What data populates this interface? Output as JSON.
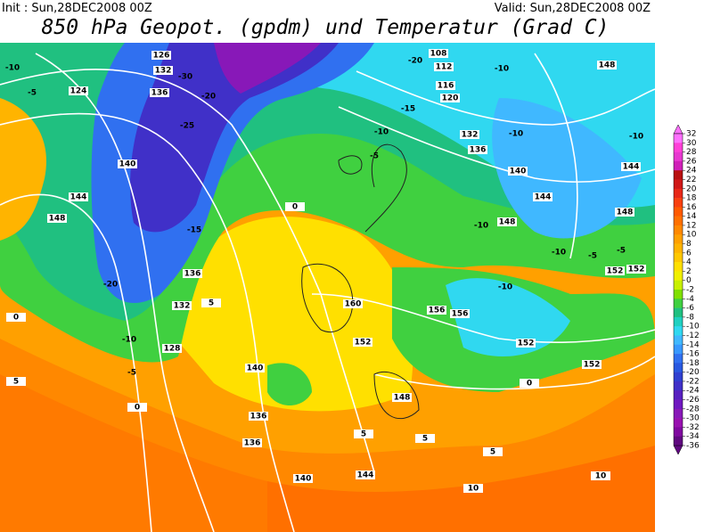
{
  "header": {
    "init": "Init : Sun,28DEC2008 00Z",
    "valid": "Valid: Sun,28DEC2008 00Z",
    "title": "850 hPa Geopot. (gpdm) und Temperatur (Grad C)"
  },
  "colorbar": {
    "levels": [
      32,
      30,
      28,
      26,
      24,
      22,
      20,
      18,
      16,
      14,
      12,
      10,
      8,
      6,
      4,
      2,
      0,
      -2,
      -4,
      -6,
      -8,
      -10,
      -12,
      -14,
      -16,
      -18,
      -20,
      -22,
      -24,
      -26,
      -28,
      -30,
      -32,
      -34,
      -36
    ],
    "colors": [
      "#ff70ff",
      "#ff40d8",
      "#e838d0",
      "#d020b8",
      "#b81010",
      "#d01818",
      "#e82818",
      "#f84010",
      "#ff5a00",
      "#ff7000",
      "#ff8800",
      "#ffa000",
      "#ffb400",
      "#ffc800",
      "#ffe000",
      "#f0f000",
      "#c8f000",
      "#80e000",
      "#40d040",
      "#20c080",
      "#20d0c0",
      "#30d8f0",
      "#40b8ff",
      "#3898ff",
      "#3070f0",
      "#2858e0",
      "#3040d0",
      "#4030c8",
      "#5820c0",
      "#7018c0",
      "#8818b8",
      "#9810b0",
      "#8008a0",
      "#600880"
    ]
  },
  "map": {
    "labels": [
      "-10",
      "-5",
      "124",
      "126",
      "132",
      "-30",
      "136",
      "-20",
      "-25",
      "140",
      "144",
      "148",
      "-15",
      "-20",
      "136",
      "132",
      "128",
      "-10",
      "-5",
      "0",
      "5",
      "0",
      "136",
      "140",
      "136",
      "140",
      "144",
      "148",
      "152",
      "160",
      "156",
      "156",
      "152",
      "-10",
      "-10",
      "148",
      "144",
      "140",
      "136",
      "132",
      "-10",
      "-5",
      "0",
      "5",
      "-10",
      "-15",
      "120",
      "116",
      "112",
      "108",
      "-20",
      "-10",
      "148",
      "-10",
      "144",
      "148",
      "-10",
      "-5",
      "-5",
      "152",
      "152",
      "152",
      "10",
      "10",
      "5",
      "5",
      "5",
      "0"
    ]
  }
}
